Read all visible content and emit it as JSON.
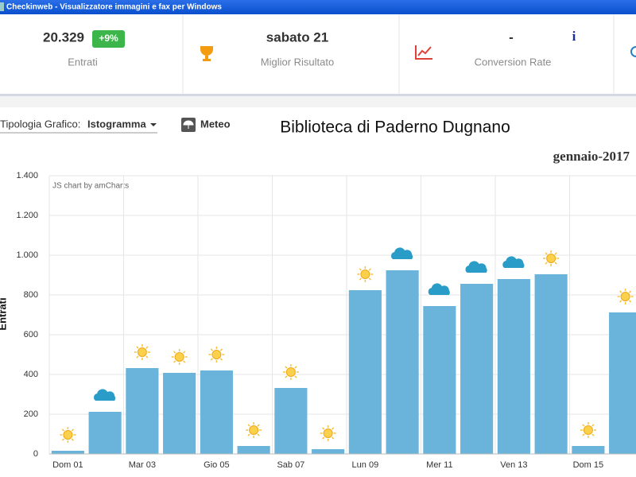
{
  "window": {
    "title": "Checkinweb - Visualizzatore immagini e fax per Windows"
  },
  "stats": [
    {
      "value": "20.329",
      "badge": "+9%",
      "label": "Entrati"
    },
    {
      "value": "sabato 21",
      "label": "Miglior Risultato"
    },
    {
      "value": "-",
      "label": "Conversion Rate",
      "icon": "i"
    }
  ],
  "toolbar": {
    "type_label": "Tipologia Grafico:",
    "type_value": "Istogramma",
    "weather_button": "Meteo"
  },
  "chart_data": {
    "type": "bar",
    "title": "Biblioteca di Paderno Dugnano",
    "subtitle": "gennaio-2017",
    "credit": "JS chart by amCharts",
    "y_label": "Entrati",
    "categories": [
      "Dom 01",
      null,
      "Mar 03",
      null,
      "Gio 05",
      null,
      "Sab 07",
      null,
      "Lun 09",
      null,
      "Mer 11",
      null,
      "Ven 13",
      null,
      "Dom 15",
      null
    ],
    "values": [
      16,
      212,
      432,
      408,
      420,
      40,
      332,
      24,
      824,
      924,
      744,
      856,
      880,
      904,
      40,
      712
    ],
    "color": "#6ab4dc",
    "ylim": [
      0,
      1400
    ],
    "yticks": [
      0,
      200,
      400,
      600,
      800,
      {
        "value": 1000,
        "label": "1.000"
      },
      {
        "value": 1200,
        "label": "1.200"
      },
      {
        "value": 1400,
        "label": "1.400"
      }
    ],
    "grid": true
  }
}
